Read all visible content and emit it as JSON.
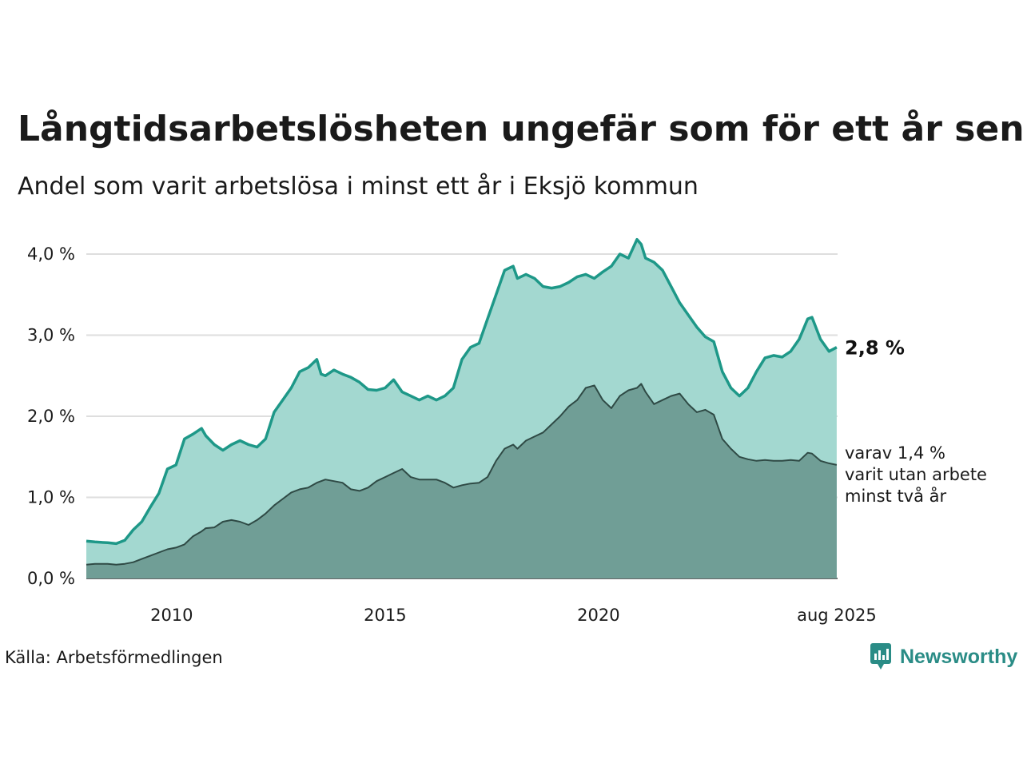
{
  "title": "Långtidsarbetslösheten ungefär som för ett år sen",
  "subtitle": "Andel som varit arbetslösa i minst ett år i Eksjö kommun",
  "source": "Källa: Arbetsförmedlingen",
  "brand": "Newsworthy",
  "colors": {
    "total_fill": "#a3d8d0",
    "total_line": "#1e9888",
    "long_fill": "#709e96",
    "long_line": "#2f4a45",
    "grid": "#dedede",
    "brand": "#2a8c86"
  },
  "chart_data": {
    "type": "area",
    "title": "Långtidsarbetslösheten ungefär som för ett år sen",
    "subtitle": "Andel som varit arbetslösa i minst ett år i Eksjö kommun",
    "xlabel": "",
    "ylabel": "",
    "xlim": [
      2008.0,
      2025.6
    ],
    "ylim": [
      0,
      4.2
    ],
    "y_ticks": [
      {
        "value": 0,
        "label": "0,0 %"
      },
      {
        "value": 1,
        "label": "1,0 %"
      },
      {
        "value": 2,
        "label": "2,0 %"
      },
      {
        "value": 3,
        "label": "3,0 %"
      },
      {
        "value": 4,
        "label": "4,0 %"
      }
    ],
    "x_ticks": [
      {
        "value": 2010,
        "label": "2010"
      },
      {
        "value": 2015,
        "label": "2015"
      },
      {
        "value": 2020,
        "label": "2020"
      },
      {
        "value": 2025.58,
        "label": "aug 2025"
      }
    ],
    "grid": true,
    "legend": "none",
    "annotations": {
      "end_value_label": "2,8 %",
      "sub_label_lines": [
        "varav 1,4 %",
        "varit utan arbete",
        "minst två år"
      ]
    },
    "series": [
      {
        "key": "total",
        "x": [
          2008.0,
          2008.2,
          2008.5,
          2008.7,
          2008.9,
          2009.1,
          2009.3,
          2009.5,
          2009.7,
          2009.9,
          2010.1,
          2010.3,
          2010.5,
          2010.7,
          2010.8,
          2011.0,
          2011.2,
          2011.4,
          2011.6,
          2011.8,
          2012.0,
          2012.2,
          2012.4,
          2012.6,
          2012.8,
          2013.0,
          2013.2,
          2013.4,
          2013.5,
          2013.6,
          2013.8,
          2014.0,
          2014.2,
          2014.4,
          2014.6,
          2014.8,
          2015.0,
          2015.2,
          2015.4,
          2015.6,
          2015.8,
          2016.0,
          2016.2,
          2016.4,
          2016.6,
          2016.8,
          2017.0,
          2017.2,
          2017.4,
          2017.6,
          2017.8,
          2018.0,
          2018.1,
          2018.3,
          2018.5,
          2018.7,
          2018.9,
          2019.1,
          2019.3,
          2019.5,
          2019.7,
          2019.9,
          2020.1,
          2020.3,
          2020.5,
          2020.7,
          2020.9,
          2021.0,
          2021.1,
          2021.3,
          2021.5,
          2021.7,
          2021.9,
          2022.1,
          2022.3,
          2022.5,
          2022.7,
          2022.9,
          2023.1,
          2023.3,
          2023.5,
          2023.7,
          2023.9,
          2024.1,
          2024.3,
          2024.5,
          2024.7,
          2024.9,
          2025.0,
          2025.2,
          2025.4,
          2025.58
        ],
        "values": [
          0.46,
          0.45,
          0.44,
          0.43,
          0.47,
          0.6,
          0.7,
          0.88,
          1.05,
          1.35,
          1.4,
          1.72,
          1.78,
          1.85,
          1.76,
          1.65,
          1.58,
          1.65,
          1.7,
          1.65,
          1.62,
          1.72,
          2.05,
          2.2,
          2.35,
          2.55,
          2.6,
          2.7,
          2.52,
          2.5,
          2.57,
          2.52,
          2.48,
          2.42,
          2.33,
          2.32,
          2.35,
          2.45,
          2.3,
          2.25,
          2.2,
          2.25,
          2.2,
          2.25,
          2.35,
          2.7,
          2.85,
          2.9,
          3.2,
          3.5,
          3.8,
          3.85,
          3.7,
          3.75,
          3.7,
          3.6,
          3.58,
          3.6,
          3.65,
          3.72,
          3.75,
          3.7,
          3.78,
          3.85,
          4.0,
          3.95,
          4.18,
          4.12,
          3.95,
          3.9,
          3.8,
          3.6,
          3.4,
          3.25,
          3.1,
          2.98,
          2.92,
          2.55,
          2.35,
          2.25,
          2.35,
          2.55,
          2.72,
          2.75,
          2.73,
          2.8,
          2.95,
          3.2,
          3.22,
          2.95,
          2.8,
          2.85
        ]
      },
      {
        "key": "long",
        "x": [
          2008.0,
          2008.2,
          2008.5,
          2008.7,
          2008.9,
          2009.1,
          2009.3,
          2009.5,
          2009.7,
          2009.9,
          2010.1,
          2010.3,
          2010.5,
          2010.7,
          2010.8,
          2011.0,
          2011.2,
          2011.4,
          2011.6,
          2011.8,
          2012.0,
          2012.2,
          2012.4,
          2012.6,
          2012.8,
          2013.0,
          2013.2,
          2013.4,
          2013.5,
          2013.6,
          2013.8,
          2014.0,
          2014.2,
          2014.4,
          2014.6,
          2014.8,
          2015.0,
          2015.2,
          2015.4,
          2015.6,
          2015.8,
          2016.0,
          2016.2,
          2016.4,
          2016.6,
          2016.8,
          2017.0,
          2017.2,
          2017.4,
          2017.6,
          2017.8,
          2018.0,
          2018.1,
          2018.3,
          2018.5,
          2018.7,
          2018.9,
          2019.1,
          2019.3,
          2019.5,
          2019.7,
          2019.9,
          2020.1,
          2020.3,
          2020.5,
          2020.7,
          2020.9,
          2021.0,
          2021.1,
          2021.3,
          2021.5,
          2021.7,
          2021.9,
          2022.1,
          2022.3,
          2022.5,
          2022.7,
          2022.9,
          2023.1,
          2023.3,
          2023.5,
          2023.7,
          2023.9,
          2024.1,
          2024.3,
          2024.5,
          2024.7,
          2024.9,
          2025.0,
          2025.2,
          2025.4,
          2025.58
        ],
        "values": [
          0.17,
          0.18,
          0.18,
          0.17,
          0.18,
          0.2,
          0.24,
          0.28,
          0.32,
          0.36,
          0.38,
          0.42,
          0.52,
          0.58,
          0.62,
          0.63,
          0.7,
          0.72,
          0.7,
          0.66,
          0.72,
          0.8,
          0.9,
          0.98,
          1.06,
          1.1,
          1.12,
          1.18,
          1.2,
          1.22,
          1.2,
          1.18,
          1.1,
          1.08,
          1.12,
          1.2,
          1.25,
          1.3,
          1.35,
          1.25,
          1.22,
          1.22,
          1.22,
          1.18,
          1.12,
          1.15,
          1.17,
          1.18,
          1.25,
          1.45,
          1.6,
          1.65,
          1.6,
          1.7,
          1.75,
          1.8,
          1.9,
          2.0,
          2.12,
          2.2,
          2.35,
          2.38,
          2.2,
          2.1,
          2.25,
          2.32,
          2.35,
          2.4,
          2.3,
          2.15,
          2.2,
          2.25,
          2.28,
          2.15,
          2.05,
          2.08,
          2.02,
          1.72,
          1.6,
          1.5,
          1.47,
          1.45,
          1.46,
          1.45,
          1.45,
          1.46,
          1.45,
          1.55,
          1.54,
          1.45,
          1.42,
          1.4
        ]
      }
    ]
  }
}
